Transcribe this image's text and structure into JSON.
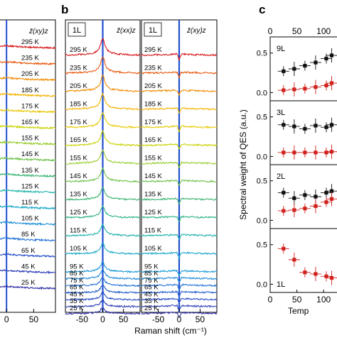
{
  "figure": {
    "panel_b_letter": "b",
    "panel_c_letter": "c",
    "shared_xlabel": "Raman shift (cm⁻¹)"
  },
  "chart_data": [
    {
      "panel": "a",
      "type": "line",
      "xlabel": "",
      "x_ticks": [
        0,
        50
      ],
      "polarization": "z̄(xy)z",
      "temperatures": [
        "295 K",
        "235 K",
        "205 K",
        "185 K",
        "175 K",
        "165 K",
        "155 K",
        "145 K",
        "135 K",
        "125 K",
        "115 K",
        "105 K",
        "85 K",
        "65 K",
        "45 K",
        "25 K"
      ],
      "colors": [
        "#d7191c",
        "#e8590c",
        "#f08c00",
        "#f5b400",
        "#e8c800",
        "#c9d200",
        "#9acd32",
        "#6cc24a",
        "#3cb371",
        "#20b2aa",
        "#1aa7c9",
        "#1e90d6",
        "#1f6fd6",
        "#2850c8",
        "#3040b8",
        "#3434a8"
      ]
    },
    {
      "panel": "b-left",
      "type": "line",
      "layer": "1L",
      "polarization": "z̄(xx)z",
      "x_ticks": [
        -50,
        0,
        50
      ],
      "xlim": [
        -90,
        90
      ],
      "temperatures": [
        "295 K",
        "235 K",
        "205 K",
        "185 K",
        "175 K",
        "165 K",
        "155 K",
        "145 K",
        "135 K",
        "125 K",
        "115 K",
        "105 K",
        "95 K",
        "85 K",
        "75 K",
        "65 K",
        "45 K",
        "35 K",
        "25 K"
      ],
      "colors": [
        "#d7191c",
        "#e8590c",
        "#f08c00",
        "#f5b400",
        "#e8c800",
        "#c9d200",
        "#9acd32",
        "#6cc24a",
        "#3cb371",
        "#2fb38a",
        "#20b2aa",
        "#1aa7c9",
        "#1a9ad6",
        "#1e8ad8",
        "#1f6fd6",
        "#2660cc",
        "#2850c8",
        "#3040b8",
        "#3434a8"
      ]
    },
    {
      "panel": "b-right",
      "type": "line",
      "layer": "1L",
      "polarization": "z̄(xy)z",
      "x_ticks": [
        -50,
        0,
        50
      ],
      "xlim": [
        -90,
        90
      ],
      "temperatures": [
        "295 K",
        "235 K",
        "205 K",
        "185 K",
        "175 K",
        "165 K",
        "155 K",
        "145 K",
        "135 K",
        "125 K",
        "115 K",
        "105 K",
        "95 K",
        "85 K",
        "75 K",
        "65 K",
        "45 K",
        "35 K",
        "25 K"
      ]
    },
    {
      "panel": "c",
      "type": "scatter",
      "ylabel": "Spectral weight of QES (a.u.)",
      "xlabel": "Temp",
      "top_ticks": [
        "0",
        "50",
        "100"
      ],
      "bottom_ticks": [
        "0",
        "50",
        "100"
      ],
      "xlim": [
        0,
        125
      ],
      "series_colors": [
        "#111111",
        "#d0211c"
      ],
      "subpanels": [
        {
          "layer": "9L",
          "ylim": [
            -0.05,
            0.65
          ],
          "yticks": [
            "0.5",
            "0.0"
          ],
          "black": {
            "x": [
              25,
              45,
              65,
              85,
              105,
              115
            ],
            "y": [
              0.27,
              0.3,
              0.34,
              0.38,
              0.43,
              0.47
            ]
          },
          "red": {
            "x": [
              25,
              45,
              65,
              85,
              105,
              115
            ],
            "y": [
              0.03,
              0.04,
              0.05,
              0.07,
              0.09,
              0.12
            ]
          }
        },
        {
          "layer": "3L",
          "ylim": [
            -0.05,
            0.65
          ],
          "yticks": [
            "0.5",
            "0.0"
          ],
          "black": {
            "x": [
              25,
              45,
              65,
              85,
              105,
              115
            ],
            "y": [
              0.4,
              0.38,
              0.35,
              0.39,
              0.37,
              0.4
            ]
          },
          "red": {
            "x": [
              25,
              45,
              65,
              85,
              105,
              115
            ],
            "y": [
              0.05,
              0.05,
              0.05,
              0.05,
              0.05,
              0.06
            ]
          }
        },
        {
          "layer": "2L",
          "ylim": [
            -0.05,
            0.65
          ],
          "yticks": [
            "0.5",
            "0.0"
          ],
          "black": {
            "x": [
              25,
              45,
              65,
              85,
              105,
              115
            ],
            "y": [
              0.35,
              0.28,
              0.32,
              0.3,
              0.35,
              0.37
            ]
          },
          "red": {
            "x": [
              25,
              45,
              65,
              85,
              105,
              115
            ],
            "y": [
              0.12,
              0.13,
              0.15,
              0.18,
              0.23,
              0.27
            ]
          }
        },
        {
          "layer": "1L",
          "ylim": [
            -0.05,
            0.65
          ],
          "yticks": [
            "0.5",
            "0.0"
          ],
          "red": {
            "x": [
              25,
              45,
              65,
              85,
              105,
              115
            ],
            "y": [
              0.45,
              0.31,
              0.15,
              0.13,
              0.1,
              0.08
            ]
          }
        }
      ]
    }
  ]
}
